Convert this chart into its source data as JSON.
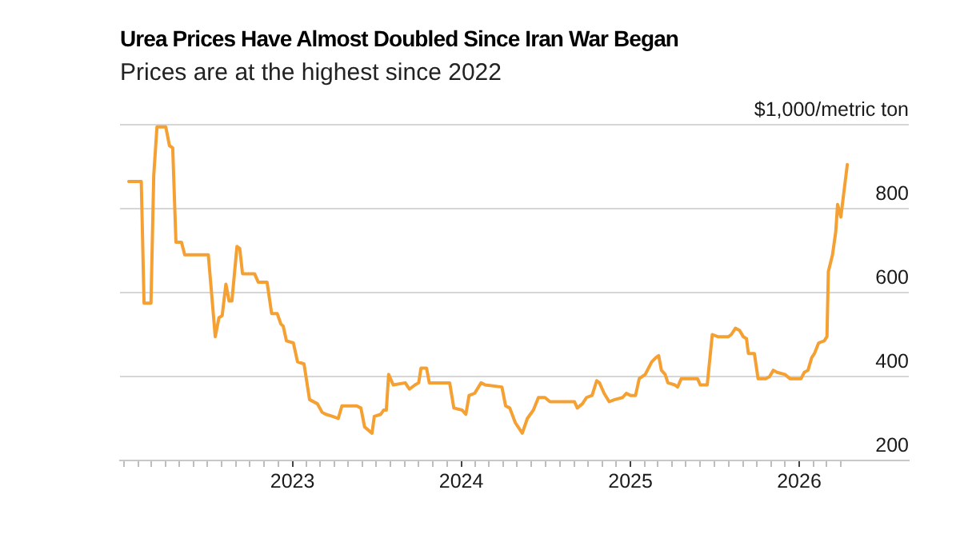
{
  "chart_data": {
    "type": "line",
    "title": "Urea Prices Have Almost Doubled Since Iran War Began",
    "subtitle": "Prices are at the highest since 2022",
    "x": [
      "2022-01-12",
      "2022-02-08",
      "2022-02-14",
      "2022-03-01",
      "2022-03-07",
      "2022-03-14",
      "2022-04-02",
      "2022-04-10",
      "2022-04-17",
      "2022-04-24",
      "2022-05-06",
      "2022-05-13",
      "2022-07-03",
      "2022-07-18",
      "2022-07-26",
      "2022-08-02",
      "2022-08-10",
      "2022-08-17",
      "2022-08-23",
      "2022-09-03",
      "2022-09-09",
      "2022-09-15",
      "2022-10-11",
      "2022-10-19",
      "2022-11-07",
      "2022-11-17",
      "2022-11-29",
      "2022-12-07",
      "2022-12-12",
      "2022-12-19",
      "2023-01-03",
      "2023-01-12",
      "2023-01-26",
      "2023-02-07",
      "2023-02-24",
      "2023-03-06",
      "2023-03-14",
      "2023-03-29",
      "2023-04-10",
      "2023-04-18",
      "2023-05-06",
      "2023-05-20",
      "2023-05-29",
      "2023-06-06",
      "2023-06-22",
      "2023-06-27",
      "2023-07-11",
      "2023-07-17",
      "2023-07-23",
      "2023-07-28",
      "2023-08-07",
      "2023-09-02",
      "2023-09-11",
      "2023-09-23",
      "2023-10-01",
      "2023-10-06",
      "2023-10-18",
      "2023-10-24",
      "2023-12-07",
      "2023-12-16",
      "2024-01-03",
      "2024-01-11",
      "2024-01-18",
      "2024-01-30",
      "2024-02-13",
      "2024-02-22",
      "2024-03-29",
      "2024-04-06",
      "2024-04-15",
      "2024-04-27",
      "2024-05-12",
      "2024-05-23",
      "2024-06-05",
      "2024-06-16",
      "2024-06-30",
      "2024-07-11",
      "2024-09-02",
      "2024-09-08",
      "2024-09-19",
      "2024-09-28",
      "2024-10-10",
      "2024-10-20",
      "2024-10-26",
      "2024-11-05",
      "2024-11-16",
      "2024-11-28",
      "2024-12-15",
      "2024-12-23",
      "2025-01-01",
      "2025-01-12",
      "2025-01-20",
      "2025-02-02",
      "2025-02-16",
      "2025-02-25",
      "2025-03-03",
      "2025-03-09",
      "2025-03-17",
      "2025-03-23",
      "2025-04-07",
      "2025-04-13",
      "2025-04-21",
      "2025-05-26",
      "2025-06-01",
      "2025-06-16",
      "2025-06-27",
      "2025-07-09",
      "2025-08-01",
      "2025-08-07",
      "2025-08-16",
      "2025-08-25",
      "2025-09-02",
      "2025-09-09",
      "2025-09-13",
      "2025-09-26",
      "2025-10-04",
      "2025-10-21",
      "2025-10-29",
      "2025-11-06",
      "2025-11-14",
      "2025-12-01",
      "2025-12-12",
      "2025-12-30",
      "2026-01-05",
      "2026-01-12",
      "2026-01-20",
      "2026-01-28",
      "2026-02-03",
      "2026-02-12",
      "2026-02-24",
      "2026-03-02",
      "2026-03-05",
      "2026-03-14",
      "2026-03-21",
      "2026-03-25",
      "2026-04-01",
      "2026-04-06",
      "2026-04-15"
    ],
    "values": [
      865,
      865,
      575,
      575,
      880,
      995,
      995,
      950,
      945,
      720,
      720,
      690,
      690,
      495,
      540,
      545,
      620,
      580,
      580,
      710,
      705,
      645,
      645,
      625,
      625,
      550,
      550,
      525,
      520,
      485,
      480,
      435,
      430,
      345,
      335,
      315,
      310,
      305,
      300,
      330,
      330,
      330,
      325,
      280,
      265,
      305,
      310,
      320,
      320,
      405,
      380,
      385,
      370,
      380,
      385,
      420,
      420,
      385,
      385,
      325,
      320,
      310,
      355,
      360,
      385,
      380,
      375,
      330,
      325,
      290,
      265,
      300,
      320,
      350,
      350,
      340,
      340,
      325,
      335,
      350,
      355,
      390,
      385,
      360,
      340,
      345,
      350,
      360,
      355,
      355,
      395,
      405,
      435,
      445,
      450,
      415,
      405,
      385,
      380,
      375,
      395,
      395,
      380,
      380,
      500,
      495,
      495,
      500,
      515,
      510,
      495,
      490,
      455,
      455,
      395,
      395,
      400,
      415,
      410,
      405,
      395,
      395,
      395,
      410,
      415,
      445,
      455,
      480,
      485,
      495,
      650,
      690,
      745,
      810,
      780,
      825,
      905
    ],
    "color": "#f5a032",
    "xlim": [
      "2021-12-24",
      "2026-08-26"
    ],
    "xticks": [
      {
        "value": "2022-01",
        "label": null
      },
      {
        "value": "2022-02",
        "label": null
      },
      {
        "value": "2022-03",
        "label": null
      },
      {
        "value": "2022-04",
        "label": null
      },
      {
        "value": "2022-05",
        "label": null
      },
      {
        "value": "2022-06",
        "label": null
      },
      {
        "value": "2022-07",
        "label": null
      },
      {
        "value": "2022-08",
        "label": null
      },
      {
        "value": "2022-09",
        "label": null
      },
      {
        "value": "2022-10",
        "label": null
      },
      {
        "value": "2022-11",
        "label": null
      },
      {
        "value": "2022-12",
        "label": null
      },
      "2023",
      {
        "value": "2023-02",
        "label": null
      },
      {
        "value": "2023-03",
        "label": null
      },
      {
        "value": "2023-04",
        "label": null
      },
      {
        "value": "2023-05",
        "label": null
      },
      {
        "value": "2023-06",
        "label": null
      },
      {
        "value": "2023-07",
        "label": null
      },
      {
        "value": "2023-08",
        "label": null
      },
      {
        "value": "2023-09",
        "label": null
      },
      {
        "value": "2023-10",
        "label": null
      },
      {
        "value": "2023-11",
        "label": null
      },
      {
        "value": "2023-12",
        "label": null
      },
      "2024",
      {
        "value": "2024-02",
        "label": null
      },
      {
        "value": "2024-03",
        "label": null
      },
      {
        "value": "2024-04",
        "label": null
      },
      {
        "value": "2024-05",
        "label": null
      },
      {
        "value": "2024-06",
        "label": null
      },
      {
        "value": "2024-07",
        "label": null
      },
      {
        "value": "2024-08",
        "label": null
      },
      {
        "value": "2024-09",
        "label": null
      },
      {
        "value": "2024-10",
        "label": null
      },
      {
        "value": "2024-11",
        "label": null
      },
      {
        "value": "2024-12",
        "label": null
      },
      "2025",
      {
        "value": "2025-02",
        "label": null
      },
      {
        "value": "2025-03",
        "label": null
      },
      {
        "value": "2025-04",
        "label": null
      },
      {
        "value": "2025-05",
        "label": null
      },
      {
        "value": "2025-06",
        "label": null
      },
      {
        "value": "2025-07",
        "label": null
      },
      {
        "value": "2025-08",
        "label": null
      },
      {
        "value": "2025-09",
        "label": null
      },
      {
        "value": "2025-10",
        "label": null
      },
      {
        "value": "2025-11",
        "label": null
      },
      {
        "value": "2025-12",
        "label": null
      },
      "2026",
      {
        "value": "2026-02",
        "label": null
      },
      {
        "value": "2026-03",
        "label": null
      },
      {
        "value": "2026-04",
        "label": null
      }
    ],
    "ylim": [
      200,
      1000
    ],
    "yticks": [
      200,
      400,
      600,
      800,
      {
        "value": 1000,
        "label": "$1,000/metric ton"
      }
    ],
    "grid": "y"
  }
}
